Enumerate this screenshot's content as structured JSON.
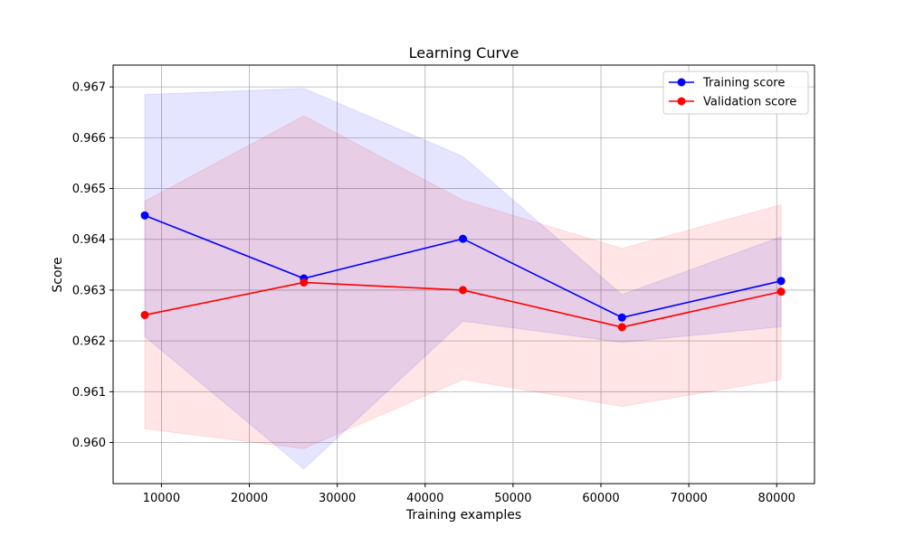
{
  "chart_data": {
    "type": "line",
    "title": "Learning Curve",
    "xlabel": "Training examples",
    "ylabel": "Score",
    "xlim": [
      4500,
      84300
    ],
    "ylim": [
      0.95919,
      0.96743
    ],
    "grid": true,
    "legend_position": "upper right",
    "x_ticks": [
      10000,
      20000,
      30000,
      40000,
      50000,
      60000,
      70000,
      80000
    ],
    "x_tick_labels": [
      "10000",
      "20000",
      "30000",
      "40000",
      "50000",
      "60000",
      "70000",
      "80000"
    ],
    "y_ticks": [
      0.96,
      0.961,
      0.962,
      0.963,
      0.964,
      0.965,
      0.966,
      0.967
    ],
    "y_tick_labels": [
      "0.960",
      "0.961",
      "0.962",
      "0.963",
      "0.964",
      "0.965",
      "0.966",
      "0.967"
    ],
    "x": [
      8100,
      26200,
      44300,
      62400,
      80500
    ],
    "series": [
      {
        "name": "Training score",
        "color": "#0000ff",
        "band_color": "#0000ff",
        "values": [
          0.96447,
          0.96323,
          0.96401,
          0.96246,
          0.96318
        ],
        "lower": [
          0.96209,
          0.95948,
          0.96239,
          0.96197,
          0.96228
        ],
        "upper": [
          0.96685,
          0.96697,
          0.96563,
          0.96291,
          0.96405
        ]
      },
      {
        "name": "Validation score",
        "color": "#ff0000",
        "band_color": "#ff0000",
        "values": [
          0.96251,
          0.96315,
          0.963,
          0.96227,
          0.96297
        ],
        "lower": [
          0.96027,
          0.95988,
          0.96124,
          0.96071,
          0.96124
        ],
        "upper": [
          0.96475,
          0.96643,
          0.96477,
          0.96382,
          0.96468
        ]
      }
    ]
  }
}
